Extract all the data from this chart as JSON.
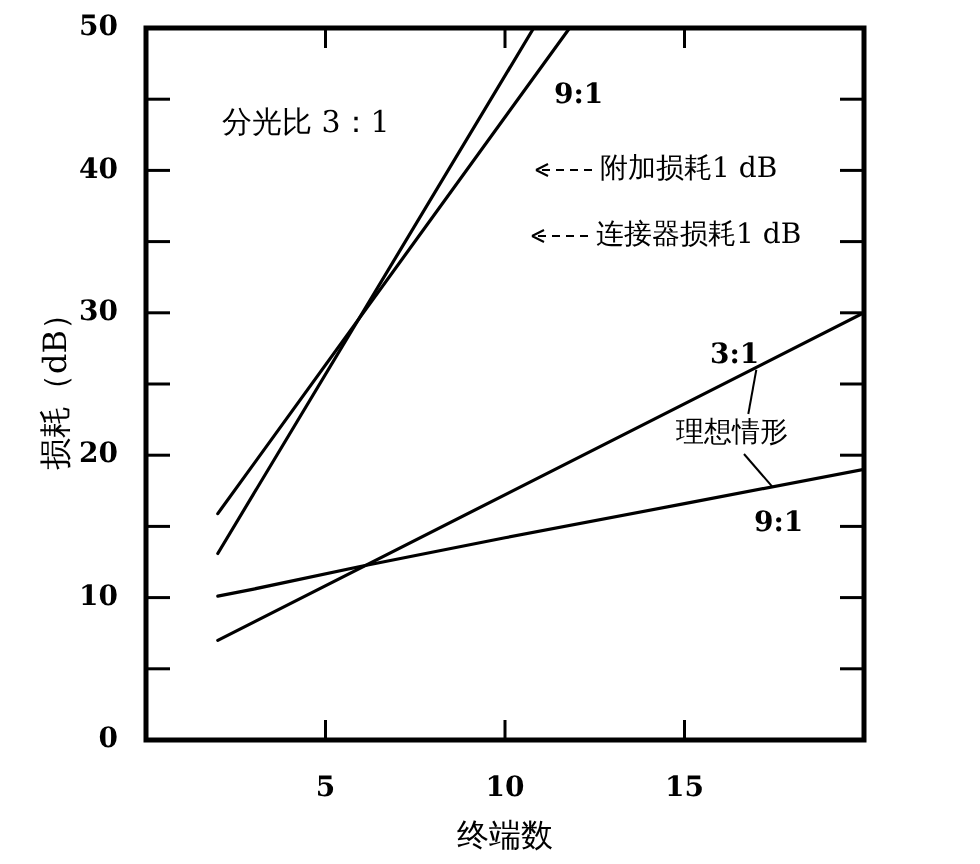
{
  "chart_data": {
    "type": "line",
    "xlabel": "终端数",
    "ylabel": "损耗（dB）",
    "xlim": [
      0,
      20
    ],
    "ylim": [
      0,
      50
    ],
    "xticks": [
      5,
      10,
      15
    ],
    "yticks": [
      0,
      {
        "value": 5,
        "label": null
      },
      10,
      {
        "value": 15,
        "label": null
      },
      20,
      {
        "value": 25,
        "label": null
      },
      30,
      {
        "value": 35,
        "label": null
      },
      40,
      {
        "value": 45,
        "label": null
      },
      50
    ],
    "grid": false,
    "marker": "none",
    "line_style": "solid",
    "series": [
      {
        "color": "#000000",
        "x": [
          2,
          10.8
        ],
        "values": [
          13.1,
          50
        ]
      },
      {
        "color": "#000000",
        "x": [
          2,
          11.8
        ],
        "values": [
          15.9,
          50
        ]
      },
      {
        "color": "#000000",
        "x": [
          2,
          20
        ],
        "values": [
          7.0,
          30.0
        ]
      },
      {
        "color": "#000000",
        "x": [
          2,
          3,
          6,
          10,
          15,
          20
        ],
        "values": [
          10.1,
          10.6,
          12.2,
          14.2,
          16.6,
          19.0
        ]
      }
    ],
    "annotations": [
      "分光比 3：1",
      "9:1",
      "附加损耗1 dB",
      "连接器损耗1 dB",
      "3:1",
      {
        "text": "理想情形",
        "x": 17,
        "y": 26
      },
      "9:1"
    ]
  }
}
